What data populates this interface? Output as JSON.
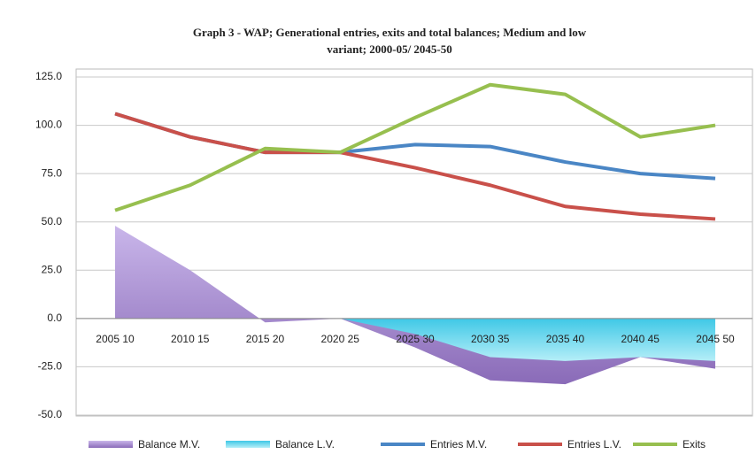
{
  "chart_data": {
    "type": "line",
    "title": "Graph 3 - WAP; Generational entries, exits and total balances; Medium and low",
    "subtitle": "variant; 2000-05/ 2045-50",
    "categories": [
      "2005 10",
      "2010 15",
      "2015 20",
      "2020 25",
      "2025 30",
      "2030 35",
      "2035 40",
      "2040 45",
      "2045 50"
    ],
    "ylim": [
      -50,
      125
    ],
    "yticks": [
      {
        "value": -50,
        "label": "-50.0"
      },
      {
        "value": -25,
        "label": "-25.0"
      },
      {
        "value": 0,
        "label": "0.0"
      },
      {
        "value": 25,
        "label": "25.0"
      },
      {
        "value": 50,
        "label": "50.0"
      },
      {
        "value": 75,
        "label": "75.0"
      },
      {
        "value": 100,
        "label": "100.0"
      },
      {
        "value": 125,
        "label": "125.0"
      }
    ],
    "grid": true,
    "legend": "bottom",
    "series": [
      {
        "name": "Balance M.V.",
        "kind": "area",
        "color": "#a58bd0",
        "values": [
          48,
          25,
          -2,
          0,
          -15,
          -32,
          -34,
          -20,
          -26
        ]
      },
      {
        "name": "Balance L.V.",
        "kind": "area",
        "color": "#6fd8ee",
        "values": [
          null,
          null,
          null,
          0,
          -8,
          -20,
          -22,
          -20,
          -22
        ]
      },
      {
        "name": "Entries M.V.",
        "kind": "line",
        "color": "#4a86c5",
        "values": [
          106,
          94,
          86,
          86,
          90,
          89,
          81,
          75,
          72.5
        ]
      },
      {
        "name": "Entries L.V.",
        "kind": "line",
        "color": "#c9504a",
        "values": [
          106,
          94,
          86,
          86,
          78,
          69,
          58,
          54,
          51.5
        ]
      },
      {
        "name": "Exits",
        "kind": "line",
        "color": "#97bf4f",
        "values": [
          56,
          69,
          88,
          86,
          104,
          121,
          116,
          94,
          100
        ]
      }
    ]
  }
}
